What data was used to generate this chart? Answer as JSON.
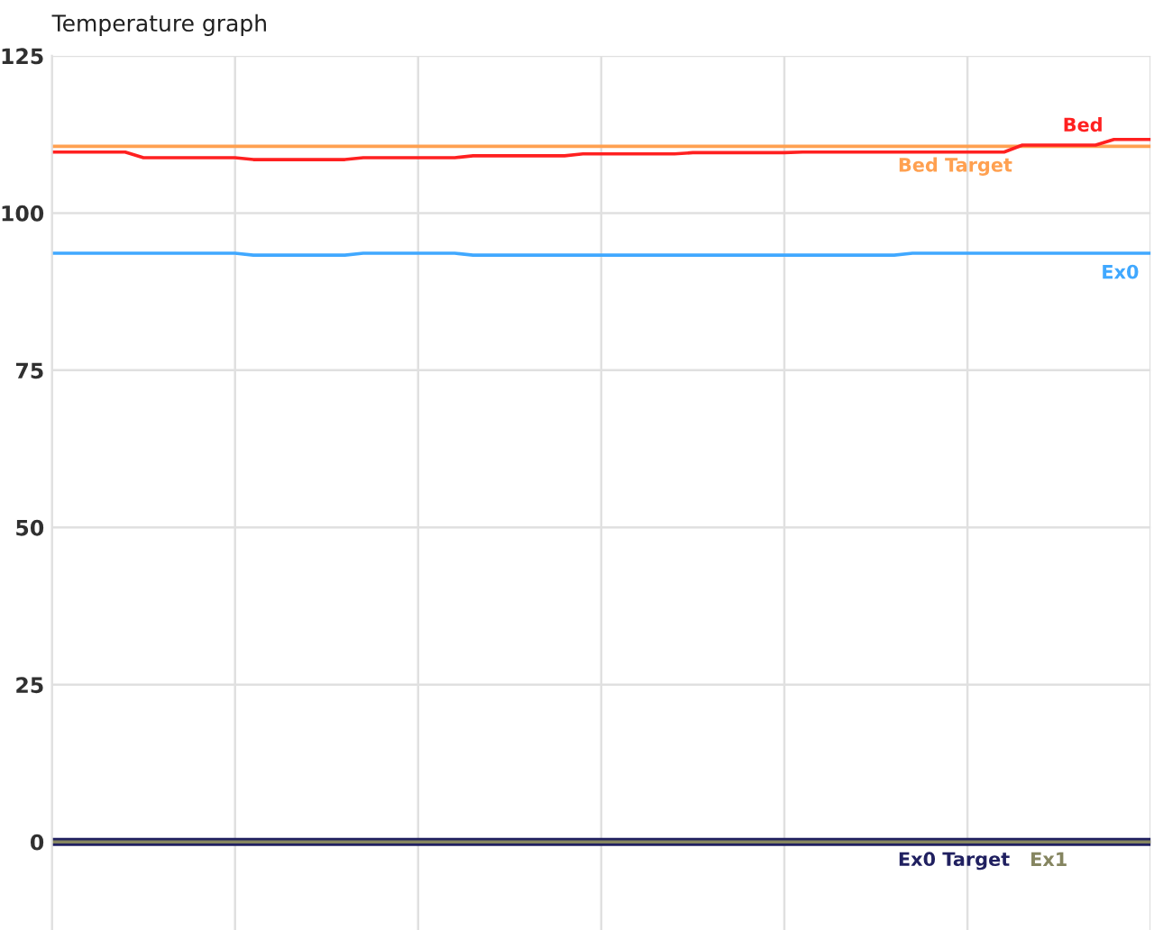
{
  "chart_data": {
    "type": "line",
    "title": "Temperature graph",
    "categories": [
      null,
      null,
      null,
      null,
      null,
      null,
      null,
      null,
      null,
      null,
      null,
      null,
      null,
      null,
      null,
      null,
      null,
      null,
      null,
      null,
      null,
      null,
      null,
      null,
      null,
      null,
      null,
      null,
      null,
      null,
      null,
      null,
      null,
      null,
      null,
      null,
      null,
      null,
      null,
      null,
      null,
      null,
      null,
      null,
      null,
      null,
      null,
      null,
      null,
      null,
      null,
      null,
      null,
      null,
      null,
      null,
      null,
      null,
      null,
      null,
      null
    ],
    "ylim": [
      -14,
      125
    ],
    "yticks": [
      0,
      25,
      50,
      75,
      100,
      125
    ],
    "grid": true,
    "legend": false,
    "marker": "none",
    "line_style": "solid",
    "series": [
      {
        "name": "Bed Target",
        "color": "#ffa050",
        "values": [
          110.6,
          110.6,
          110.6,
          110.6,
          110.6,
          110.6,
          110.6,
          110.6,
          110.6,
          110.6,
          110.6,
          110.6,
          110.6,
          110.6,
          110.6,
          110.6,
          110.6,
          110.6,
          110.6,
          110.6,
          110.6,
          110.6,
          110.6,
          110.6,
          110.6,
          110.6,
          110.6,
          110.6,
          110.6,
          110.6,
          110.6,
          110.6,
          110.6,
          110.6,
          110.6,
          110.6,
          110.6,
          110.6,
          110.6,
          110.6,
          110.6,
          110.6,
          110.6,
          110.6,
          110.6,
          110.6,
          110.6,
          110.6,
          110.6,
          110.6,
          110.6,
          110.6,
          110.6,
          110.6,
          110.6,
          110.6,
          110.6,
          110.6,
          110.6,
          110.6,
          110.6
        ]
      },
      {
        "name": "Bed",
        "color": "#ff2020",
        "values": [
          109.7,
          109.7,
          109.7,
          109.7,
          109.7,
          108.8,
          108.8,
          108.8,
          108.8,
          108.8,
          108.8,
          108.5,
          108.5,
          108.5,
          108.5,
          108.5,
          108.5,
          108.8,
          108.8,
          108.8,
          108.8,
          108.8,
          108.8,
          109.1,
          109.1,
          109.1,
          109.1,
          109.1,
          109.1,
          109.4,
          109.4,
          109.4,
          109.4,
          109.4,
          109.4,
          109.6,
          109.6,
          109.6,
          109.6,
          109.6,
          109.6,
          109.7,
          109.7,
          109.7,
          109.7,
          109.7,
          109.7,
          109.7,
          109.7,
          109.7,
          109.7,
          109.7,
          109.7,
          110.8,
          110.8,
          110.8,
          110.8,
          110.8,
          111.7,
          111.7,
          111.7
        ]
      },
      {
        "name": "Ex0",
        "color": "#40a8ff",
        "values": [
          93.6,
          93.6,
          93.6,
          93.6,
          93.6,
          93.6,
          93.6,
          93.6,
          93.6,
          93.6,
          93.6,
          93.3,
          93.3,
          93.3,
          93.3,
          93.3,
          93.3,
          93.6,
          93.6,
          93.6,
          93.6,
          93.6,
          93.6,
          93.3,
          93.3,
          93.3,
          93.3,
          93.3,
          93.3,
          93.3,
          93.3,
          93.3,
          93.3,
          93.3,
          93.3,
          93.3,
          93.3,
          93.3,
          93.3,
          93.3,
          93.3,
          93.3,
          93.3,
          93.3,
          93.3,
          93.3,
          93.3,
          93.6,
          93.6,
          93.6,
          93.6,
          93.6,
          93.6,
          93.6,
          93.6,
          93.6,
          93.6,
          93.6,
          93.6,
          93.6,
          93.6
        ]
      },
      {
        "name": "Ex0 Target",
        "color": "#202060",
        "values": [
          0,
          0,
          0,
          0,
          0,
          0,
          0,
          0,
          0,
          0,
          0,
          0,
          0,
          0,
          0,
          0,
          0,
          0,
          0,
          0,
          0,
          0,
          0,
          0,
          0,
          0,
          0,
          0,
          0,
          0,
          0,
          0,
          0,
          0,
          0,
          0,
          0,
          0,
          0,
          0,
          0,
          0,
          0,
          0,
          0,
          0,
          0,
          0,
          0,
          0,
          0,
          0,
          0,
          0,
          0,
          0,
          0,
          0,
          0,
          0,
          0
        ]
      },
      {
        "name": "Ex1",
        "color": "#858560",
        "values": [
          0,
          0,
          0,
          0,
          0,
          0,
          0,
          0,
          0,
          0,
          0,
          0,
          0,
          0,
          0,
          0,
          0,
          0,
          0,
          0,
          0,
          0,
          0,
          0,
          0,
          0,
          0,
          0,
          0,
          0,
          0,
          0,
          0,
          0,
          0,
          0,
          0,
          0,
          0,
          0,
          0,
          0,
          0,
          0,
          0,
          0,
          0,
          0,
          0,
          0,
          0,
          0,
          0,
          0,
          0,
          0,
          0,
          0,
          0,
          0,
          0
        ]
      }
    ]
  }
}
